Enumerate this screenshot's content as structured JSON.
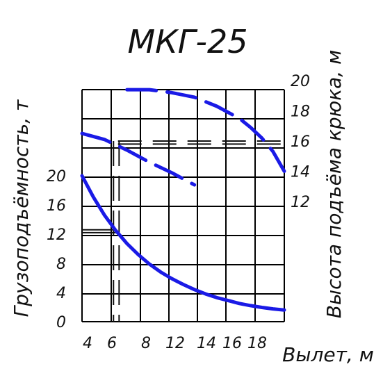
{
  "chart_data": {
    "type": "line",
    "title": "МКГ-25",
    "xlabel": "Вылет, м",
    "ylabel_left": "Грузоподъёмность, т",
    "ylabel_right": "Высота подъёма крюка, м",
    "x_ticks": [
      "4",
      "6",
      "8",
      "12",
      "14",
      "16",
      "18"
    ],
    "y_left_ticks": [
      "0",
      "4",
      "8",
      "12",
      "16",
      "20"
    ],
    "y_right_ticks": [
      "12",
      "14",
      "16",
      "18",
      "20"
    ],
    "grid": true,
    "series": [
      {
        "axis": "left",
        "style": "solid",
        "color": "#1a1ae6",
        "x": [
          4,
          5,
          6,
          7,
          8,
          9,
          10,
          11,
          12,
          13,
          14,
          15,
          16,
          17,
          18,
          19,
          20,
          21,
          22
        ],
        "y": [
          20,
          17.1,
          14.6,
          12.5,
          10.7,
          9.2,
          7.9,
          6.8,
          5.9,
          5.1,
          4.4,
          3.8,
          3.3,
          2.9,
          2.5,
          2.2,
          1.95,
          1.75,
          1.6
        ]
      },
      {
        "axis": "right",
        "style": "dashed",
        "color": "#1a1ae6",
        "x": [
          4,
          6,
          8,
          10,
          12,
          14
        ],
        "y": [
          16.5,
          16.1,
          15.4,
          14.6,
          13.9,
          13.1
        ]
      },
      {
        "axis": "right",
        "style": "dashed",
        "color": "#1a1ae6",
        "x": [
          8,
          10,
          12,
          14,
          16,
          18,
          19,
          20,
          21,
          22
        ],
        "y": [
          19.4,
          19.4,
          19.2,
          18.9,
          18.3,
          17.5,
          16.9,
          16.2,
          15.3,
          14.0
        ]
      }
    ],
    "reference_lines": {
      "color": "#111111",
      "horizontal_right": [
        16,
        15.8
      ],
      "horizontal_left": [
        12.6,
        12.2
      ],
      "vertical_x": [
        6.8,
        7.3
      ]
    }
  }
}
